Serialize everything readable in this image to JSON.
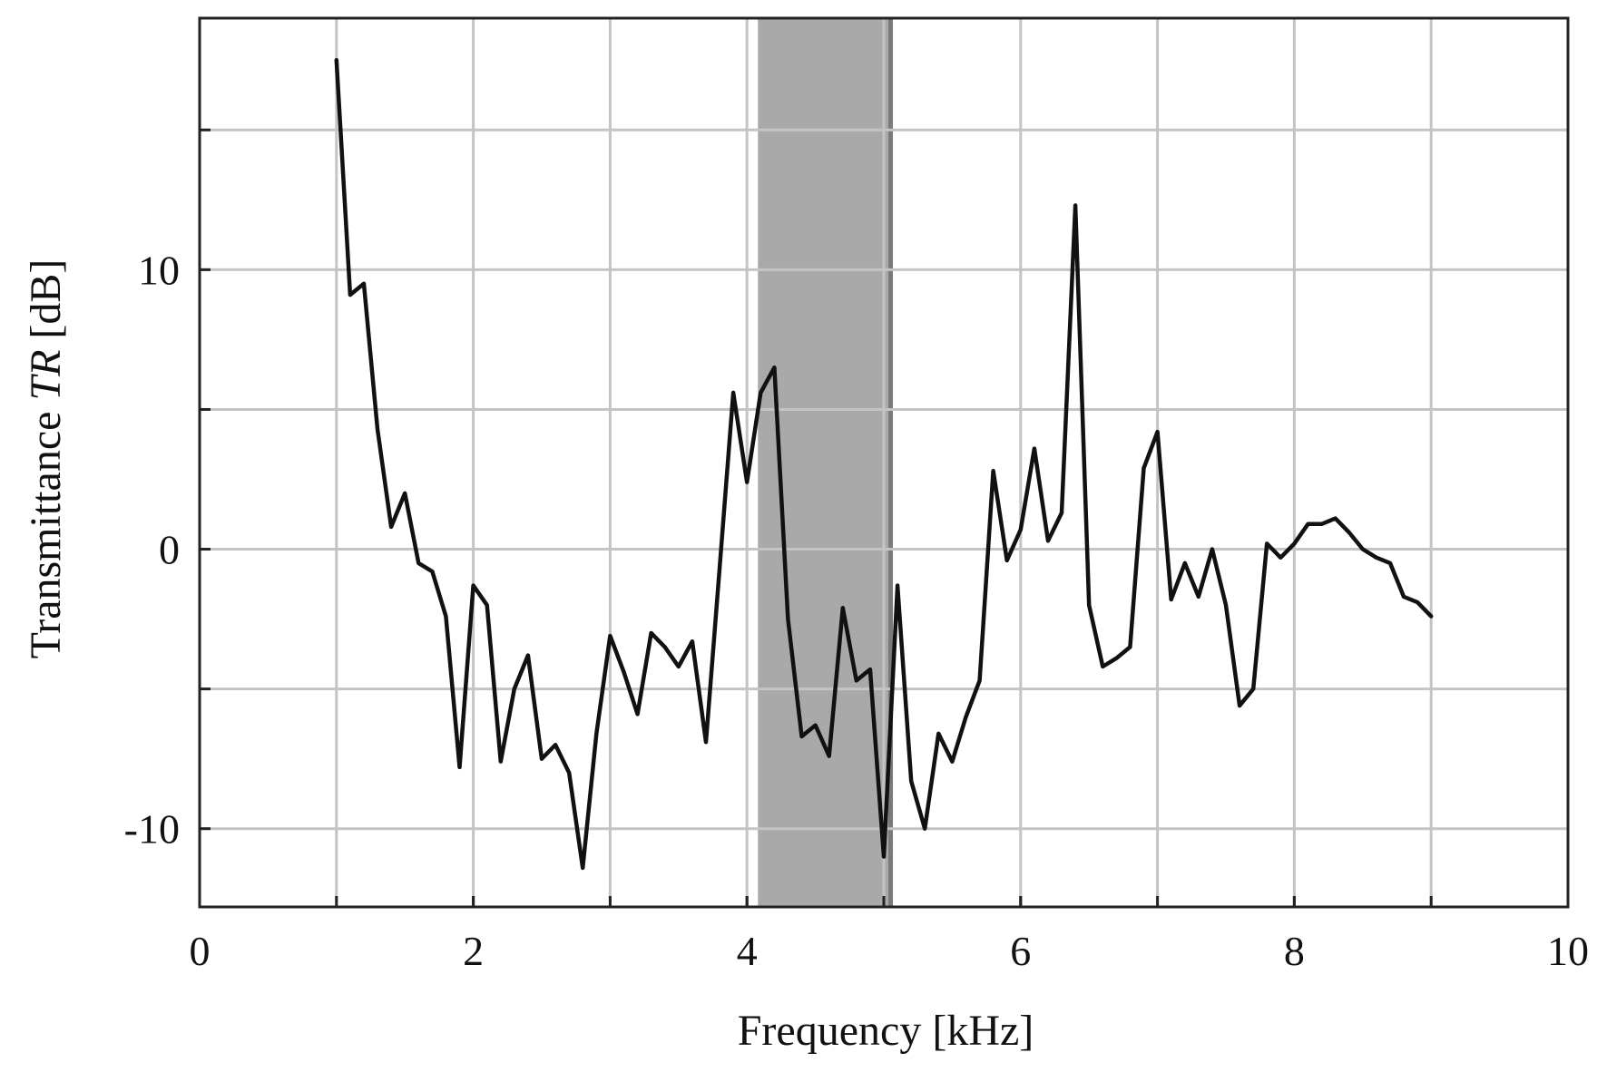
{
  "chart_data": {
    "type": "line",
    "xlabel": "Frequency [kHz]",
    "ylabel_prefix": "Transmittance ",
    "ylabel_symbol": "TR",
    "ylabel_suffix": " [dB]",
    "xlim": [
      0,
      10
    ],
    "ylim": [
      -12.8,
      19
    ],
    "x_ticks": [
      0,
      2,
      4,
      6,
      8,
      10
    ],
    "x_tick_labels": [
      "0",
      "2",
      "4",
      "6",
      "8",
      "10"
    ],
    "x_grid": [
      1,
      2,
      3,
      4,
      5,
      6,
      7,
      8,
      9
    ],
    "y_ticks": [
      -10,
      0,
      10
    ],
    "y_tick_labels": [
      "-10",
      "0",
      "10"
    ],
    "y_grid": [
      -10,
      -5,
      0,
      5,
      10,
      15
    ],
    "grid": true,
    "highlight_band": {
      "x_start": 4.08,
      "x_end": 5.05,
      "color": "#a9a9a9"
    },
    "series_color": "#111111",
    "series": [
      {
        "x": [
          1.0,
          1.1,
          1.2,
          1.3,
          1.4,
          1.5,
          1.6,
          1.7,
          1.8,
          1.9,
          2.0,
          2.1,
          2.2,
          2.3,
          2.4,
          2.5,
          2.6,
          2.7,
          2.8,
          2.9,
          3.0,
          3.1,
          3.2,
          3.3,
          3.4,
          3.5,
          3.6,
          3.7,
          3.8,
          3.9,
          4.0,
          4.1,
          4.2,
          4.3,
          4.4,
          4.5,
          4.6,
          4.7,
          4.8,
          4.9,
          5.0,
          5.1,
          5.2,
          5.3,
          5.4,
          5.5,
          5.6,
          5.7,
          5.8,
          5.9,
          6.0,
          6.1,
          6.2,
          6.3,
          6.4,
          6.5,
          6.6,
          6.7,
          6.8,
          6.9,
          7.0,
          7.1,
          7.2,
          7.3,
          7.4,
          7.5,
          7.6,
          7.7,
          7.8,
          7.9,
          8.0,
          8.1,
          8.2,
          8.3,
          8.4,
          8.5,
          8.6,
          8.7,
          8.8,
          8.9,
          9.0
        ],
        "y": [
          17.5,
          9.1,
          9.5,
          4.3,
          0.8,
          2.0,
          -0.5,
          -0.8,
          -2.4,
          -7.8,
          -1.3,
          -2.0,
          -7.6,
          -5.0,
          -3.8,
          -7.5,
          -7.0,
          -8.0,
          -11.4,
          -6.6,
          -3.1,
          -4.4,
          -5.9,
          -3.0,
          -3.5,
          -4.2,
          -3.3,
          -6.9,
          -0.7,
          5.6,
          2.4,
          5.6,
          6.5,
          -2.5,
          -6.7,
          -6.3,
          -7.4,
          -2.1,
          -4.7,
          -4.3,
          -11.0,
          -1.3,
          -8.3,
          -10.0,
          -6.6,
          -7.6,
          -6.0,
          -4.7,
          2.8,
          -0.4,
          0.7,
          3.6,
          0.3,
          1.3,
          12.3,
          -2.0,
          -4.2,
          -3.9,
          -3.5,
          2.9,
          4.2,
          -1.8,
          -0.5,
          -1.7,
          0.0,
          -2.0,
          -5.6,
          -5.0,
          0.2,
          -0.3,
          0.2,
          0.9,
          0.9,
          1.1,
          0.6,
          0.0,
          -0.3,
          -0.5,
          -1.7,
          -1.9,
          -2.4
        ]
      }
    ]
  }
}
